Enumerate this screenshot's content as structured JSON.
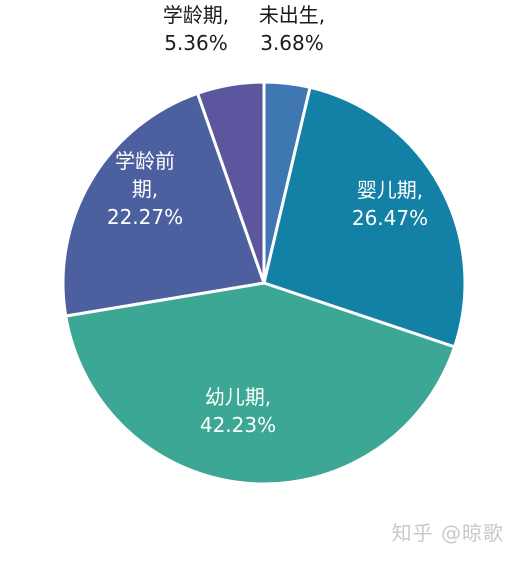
{
  "chart_data": {
    "type": "pie",
    "categories": [
      "未出生",
      "婴儿期",
      "幼儿期",
      "学龄前期",
      "学龄期"
    ],
    "values": [
      3.68,
      26.47,
      42.23,
      22.27,
      5.36
    ],
    "colors": [
      "#3f77b3",
      "#1281a5",
      "#3ba794",
      "#4c5f9f",
      "#5b569d"
    ],
    "labels": {
      "unborn": [
        "未出生,",
        "3.68%"
      ],
      "infant": [
        "婴儿期,",
        "26.47%"
      ],
      "toddler": [
        "幼儿期,",
        "42.23%"
      ],
      "preschool": [
        "学龄前",
        "期,",
        "22.27%"
      ],
      "schoolage": [
        "学龄期,",
        "5.36%"
      ]
    },
    "legend": "none",
    "grid": false
  },
  "watermark": "知乎 @晾歌"
}
